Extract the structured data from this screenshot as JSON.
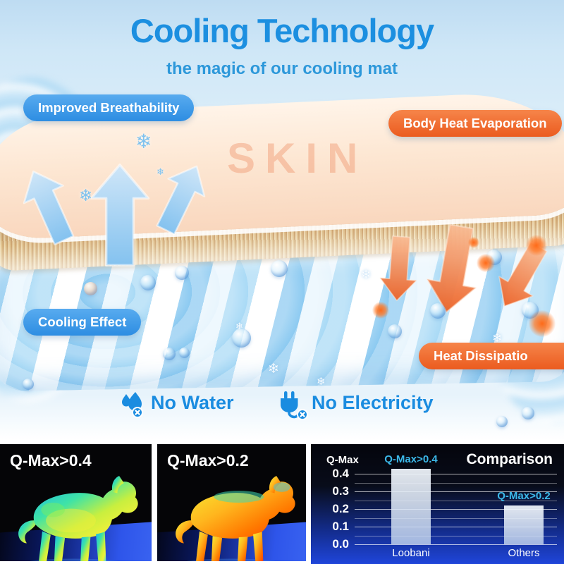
{
  "header": {
    "title": "Cooling Technology",
    "subtitle": "the magic of our cooling mat"
  },
  "diagram": {
    "skin_label": "SKIN",
    "badges": [
      {
        "id": "improved-breathability",
        "label": "Improved Breathability",
        "color": "#3d9ce9"
      },
      {
        "id": "body-heat-evaporation",
        "label": "Body Heat Evaporation",
        "color": "#ee6226"
      },
      {
        "id": "cooling-effect",
        "label": "Cooling Effect",
        "color": "#3d9ce9"
      },
      {
        "id": "heat-dissipation",
        "label": "Heat Dissipatio",
        "color": "#ee6226"
      }
    ],
    "features": [
      {
        "icon": "no-water-icon",
        "label": "No Water"
      },
      {
        "icon": "no-electricity-icon",
        "label": "No Electricity"
      }
    ]
  },
  "thermal_panels": [
    {
      "label": "Q-Max>0.4",
      "variant": "cool"
    },
    {
      "label": "Q-Max>0.2",
      "variant": "warm"
    }
  ],
  "chart_data": {
    "type": "bar",
    "title": "Comparison",
    "ylabel": "Q-Max",
    "categories": [
      "Loobani",
      "Others"
    ],
    "values": [
      0.43,
      0.22
    ],
    "bar_labels": [
      "Q-Max>0.4",
      "Q-Max>0.2"
    ],
    "yticks": [
      0.0,
      0.1,
      0.2,
      0.3,
      0.4
    ],
    "ylim": [
      0,
      0.5
    ],
    "grid": true,
    "legend_position": "none",
    "colors": {
      "bar": "#dce9f6",
      "annotation": "#3cb9ea",
      "background_top": "#04050c",
      "background_bottom": "#1f45da"
    }
  },
  "glyphs": {
    "snowflake": "❄"
  }
}
